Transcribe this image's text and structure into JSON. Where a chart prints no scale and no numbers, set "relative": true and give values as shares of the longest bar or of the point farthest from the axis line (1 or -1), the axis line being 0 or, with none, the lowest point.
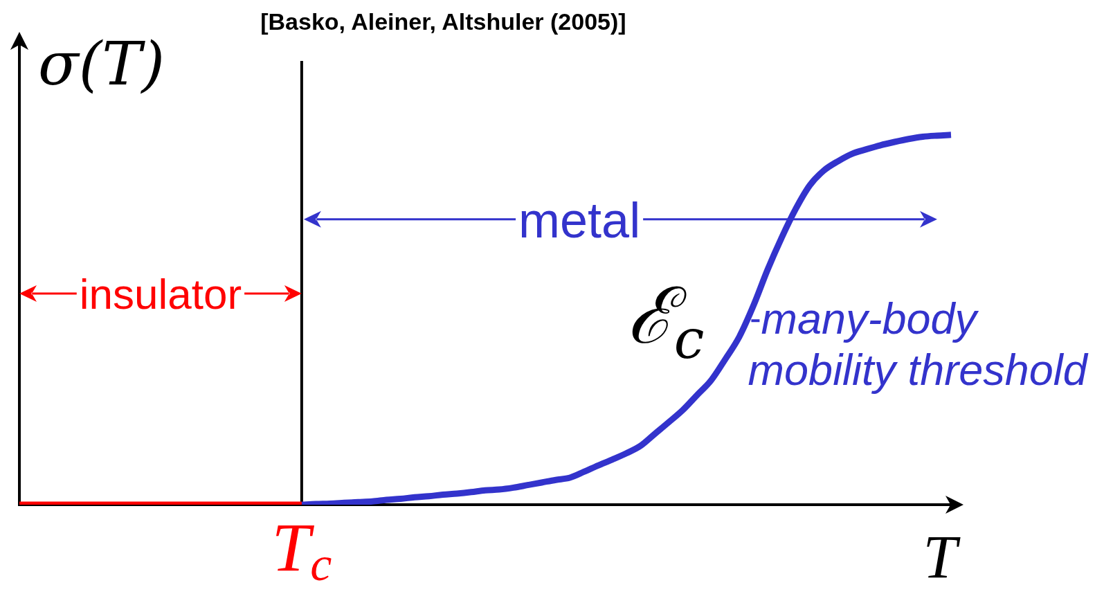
{
  "chart_data": {
    "type": "line",
    "title": "[Basko, Aleiner, Altshuler (2005)]",
    "xlabel": "T",
    "ylabel": "σ(T)",
    "relative": true,
    "categories": [
      null,
      null,
      null,
      null,
      null,
      null,
      null,
      null,
      null,
      null,
      null,
      null,
      null,
      null,
      null,
      null,
      null,
      null,
      null,
      null,
      null,
      null,
      null,
      null,
      null,
      null,
      null,
      null,
      null,
      null,
      null,
      null,
      null,
      null,
      null,
      null,
      null,
      null,
      null,
      null,
      null,
      null,
      null,
      null,
      null,
      null,
      null,
      null,
      null,
      null,
      null,
      null,
      null,
      null,
      null,
      null,
      null,
      null,
      null,
      null,
      null,
      null,
      null,
      null,
      null,
      null,
      null
    ],
    "series": [
      {
        "color": "#ff0000",
        "values": [
          0,
          0,
          0,
          0,
          0,
          0,
          0,
          0,
          0,
          0,
          0,
          0,
          0,
          0,
          0,
          0,
          0,
          0,
          0,
          0,
          0,
          null,
          null,
          null,
          null,
          null,
          null,
          null,
          null,
          null,
          null,
          null,
          null,
          null,
          null,
          null,
          null,
          null,
          null,
          null,
          null,
          null,
          null,
          null,
          null,
          null,
          null,
          null,
          null,
          null,
          null,
          null,
          null,
          null,
          null,
          null,
          null,
          null,
          null,
          null,
          null,
          null,
          null,
          null,
          null,
          null,
          null
        ]
      },
      {
        "color": "#3333cc",
        "values": [
          null,
          null,
          null,
          null,
          null,
          null,
          null,
          null,
          null,
          null,
          null,
          null,
          null,
          null,
          null,
          null,
          null,
          null,
          null,
          null,
          0,
          0.002,
          0.003,
          0.005,
          0.007,
          0.009,
          0.013,
          0.016,
          0.02,
          0.023,
          0.027,
          0.03,
          0.034,
          0.039,
          0.041,
          0.046,
          0.053,
          0.06,
          0.067,
          0.073,
          0.089,
          0.106,
          0.122,
          0.139,
          0.159,
          0.191,
          0.223,
          0.256,
          0.296,
          0.336,
          0.393,
          0.454,
          0.538,
          0.635,
          0.722,
          0.8,
          0.864,
          0.904,
          0.929,
          0.949,
          0.961,
          0.972,
          0.981,
          0.989,
          0.995,
          0.998,
          1.0
        ]
      }
    ],
    "annotations": [
      "insulator",
      "metal",
      "ℰ$_{c}$",
      "many-body mobility threshold",
      "T$_{c}$"
    ]
  }
}
